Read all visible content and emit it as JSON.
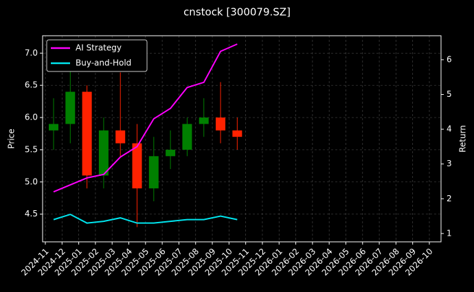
{
  "chart_data": {
    "type": "candlestick",
    "title": "cnstock [300079.SZ]",
    "ylabel": "Price",
    "y2label": "Return",
    "x": [
      "2024-11",
      "2024-12",
      "2025-01",
      "2025-02",
      "2025-03",
      "2025-04",
      "2025-05",
      "2025-06",
      "2025-07",
      "2025-08",
      "2025-09",
      "2025-10"
    ],
    "open": [
      5.8,
      5.9,
      6.4,
      5.1,
      5.8,
      5.6,
      4.9,
      5.4,
      5.5,
      5.9,
      6.0,
      5.8
    ],
    "high": [
      6.3,
      6.8,
      6.5,
      6.0,
      6.7,
      5.9,
      5.7,
      5.8,
      6.0,
      6.3,
      6.55,
      6.0
    ],
    "low": [
      5.5,
      5.6,
      4.9,
      4.9,
      5.4,
      4.3,
      4.7,
      5.2,
      5.4,
      5.7,
      5.6,
      5.5
    ],
    "close": [
      5.9,
      6.4,
      5.1,
      5.8,
      5.6,
      4.9,
      5.4,
      5.5,
      5.9,
      6.0,
      5.8,
      5.7
    ],
    "up_color": "#008000",
    "down_color": "#ff2200",
    "series": [
      {
        "name": "AI Strategy",
        "color": "#ff00ff",
        "axis": "y2",
        "values": [
          2.2,
          2.4,
          2.6,
          2.7,
          3.2,
          3.5,
          4.3,
          4.6,
          5.2,
          5.35,
          6.24,
          6.45
        ]
      },
      {
        "name": "Buy-and-Hold",
        "color": "#00e5ee",
        "axis": "y2",
        "values": [
          1.4,
          1.55,
          1.3,
          1.35,
          1.45,
          1.3,
          1.3,
          1.35,
          1.4,
          1.4,
          1.5,
          1.4
        ]
      }
    ],
    "xlim": [
      "2024-11",
      "2026-10"
    ],
    "xticks": [
      "2024-11",
      "2024-12",
      "2025-01",
      "2025-02",
      "2025-03",
      "2025-04",
      "2025-05",
      "2025-06",
      "2025-07",
      "2025-08",
      "2025-09",
      "2025-10",
      "2025-11",
      "2025-12",
      "2026-01",
      "2026-02",
      "2026-03",
      "2026-04",
      "2026-05",
      "2026-06",
      "2026-07",
      "2026-08",
      "2026-09",
      "2026-10"
    ],
    "ylim": [
      4.07,
      7.27
    ],
    "yticks": [
      4.5,
      {
        "value": 5.0,
        "label": "5.0"
      },
      5.5,
      {
        "value": 6.0,
        "label": "6.0"
      },
      6.5,
      {
        "value": 7.0,
        "label": "7.0"
      }
    ],
    "y2lim": [
      0.76,
      6.69
    ],
    "y2ticks": [
      1,
      2,
      3,
      4,
      5,
      6
    ],
    "grid": true,
    "legend": "upper left"
  }
}
